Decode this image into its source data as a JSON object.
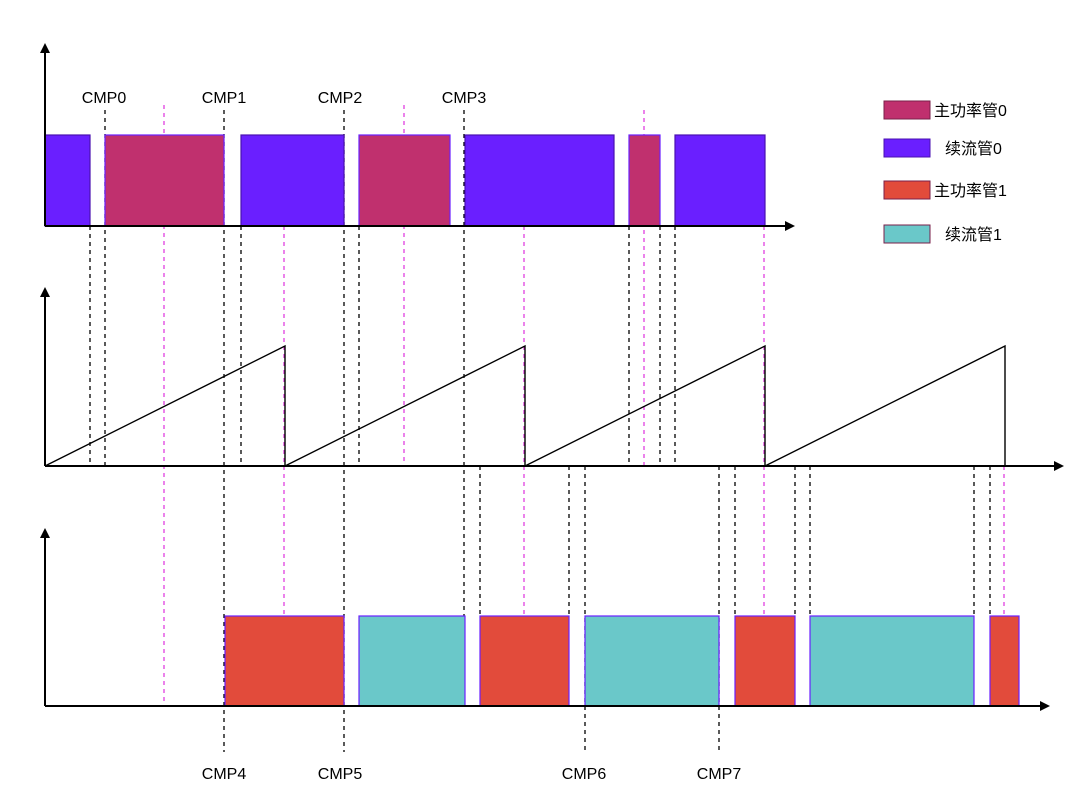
{
  "colors": {
    "main0": "#c0306e",
    "free0": "#6a1fff",
    "main1": "#e24b3b",
    "free1": "#6ac8c9",
    "dash_black": "#000000",
    "dash_magenta": "#e040e0",
    "outline": "#6a1fff"
  },
  "compare_labels_top": [
    "CMP0",
    "CMP1",
    "CMP2",
    "CMP3"
  ],
  "compare_labels_bottom": [
    "CMP4",
    "CMP5",
    "CMP6",
    "CMP7"
  ],
  "legend": [
    {
      "label": "主功率管0",
      "color_key": "main0"
    },
    {
      "label": "续流管0",
      "color_key": "free0"
    },
    {
      "label": "主功率管1",
      "color_key": "main1"
    },
    {
      "label": "续流管1",
      "color_key": "free1"
    }
  ],
  "channel0_blocks": [
    "free0",
    "main0",
    "free0",
    "main0",
    "free0",
    "main0",
    "free0"
  ],
  "channel1_blocks": [
    "main1",
    "free1",
    "main1",
    "free1",
    "main1",
    "free1",
    "main1"
  ],
  "counter_ramps": 4
}
